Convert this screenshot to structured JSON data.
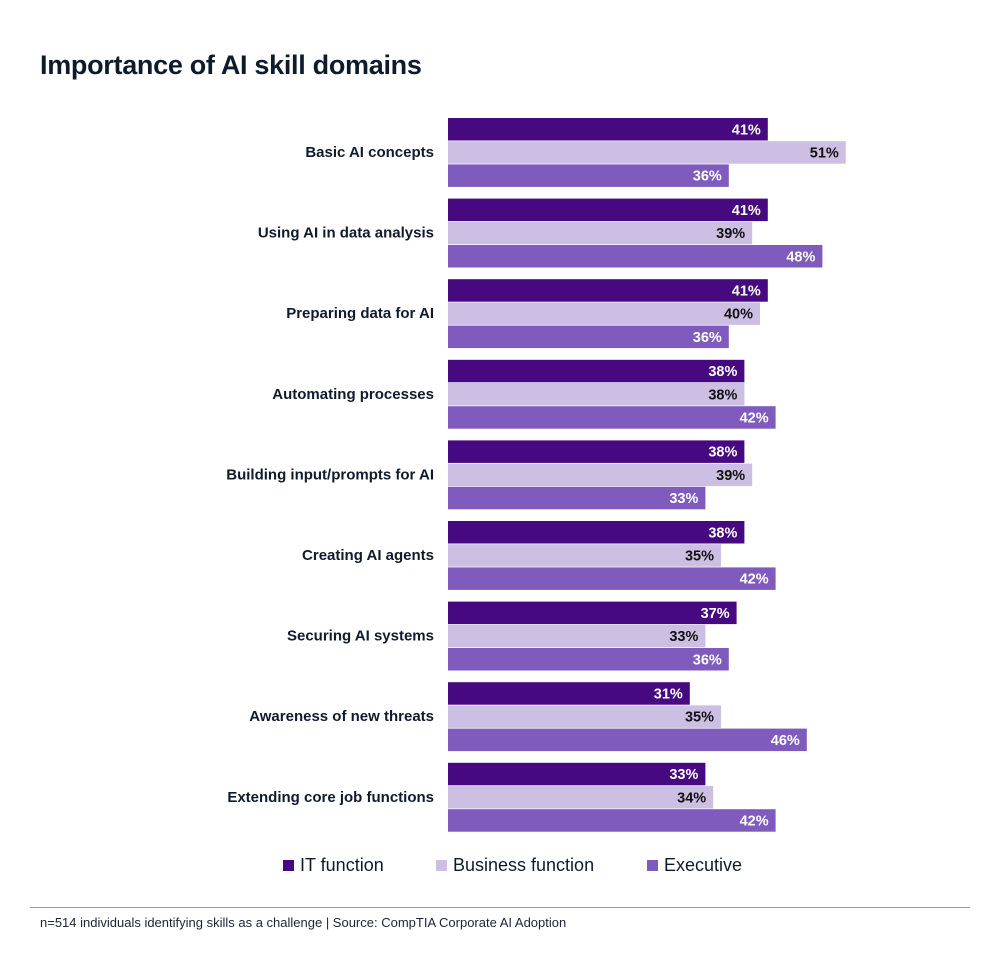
{
  "title": "Importance of AI skill domains",
  "footnote": "n=514 individuals identifying skills as a challenge | Source: CompTIA Corporate AI Adoption",
  "colors": {
    "it": "#46097f",
    "business": "#cdbfe4",
    "executive": "#7f5bbd",
    "label_on_dark": "#ffffff",
    "label_on_light": "#111111"
  },
  "chart_data": {
    "type": "bar",
    "orientation": "horizontal",
    "title": "Importance of AI skill domains",
    "categories": [
      "Basic AI concepts",
      "Using AI in data analysis",
      "Preparing data for AI",
      "Automating processes",
      "Building input/prompts for AI",
      "Creating AI agents",
      "Securing AI systems",
      "Awareness of new threats",
      "Extending core job functions"
    ],
    "series": [
      {
        "name": "IT function",
        "values": [
          41,
          41,
          41,
          38,
          38,
          38,
          37,
          31,
          33
        ]
      },
      {
        "name": "Business function",
        "values": [
          51,
          39,
          40,
          38,
          39,
          35,
          33,
          35,
          34
        ]
      },
      {
        "name": "Executive",
        "values": [
          36,
          48,
          36,
          42,
          33,
          42,
          36,
          46,
          42
        ]
      }
    ],
    "value_suffix": "%",
    "legend_position": "bottom",
    "grid": false
  }
}
